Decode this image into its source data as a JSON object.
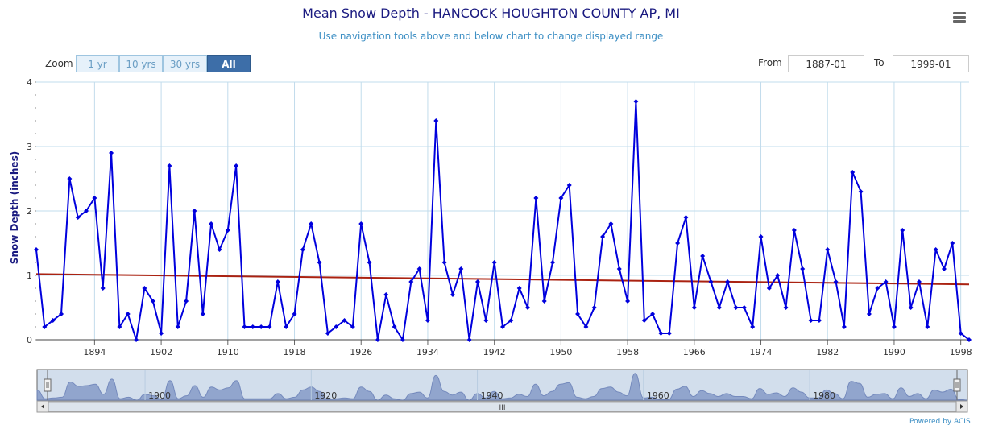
{
  "header": {
    "title": "Mean Snow Depth - HANCOCK HOUGHTON COUNTY AP, MI",
    "subtitle": "Use navigation tools above and below chart to change displayed range",
    "menu_icon": "hamburger-menu-icon"
  },
  "zoom": {
    "label": "Zoom",
    "buttons": [
      "1 yr",
      "10 yrs",
      "30 yrs",
      "All"
    ],
    "active": "All"
  },
  "range": {
    "from_label": "From",
    "from_value": "1887-01",
    "to_label": "To",
    "to_value": "1999-01"
  },
  "footer": {
    "credit": "Powered by ACIS"
  },
  "colors": {
    "series": "#0000dd",
    "trend": "#aa2211",
    "grid": "#c2dcec",
    "navigator_fill": "#d2deec",
    "navigator_area": "#8b9fca"
  },
  "chart_data": {
    "type": "line",
    "title": "Mean Snow Depth - HANCOCK HOUGHTON COUNTY AP, MI",
    "ylabel": "Snow Depth (inches)",
    "xlabel": "",
    "ylim": [
      0,
      4
    ],
    "xlim": [
      1887,
      1999
    ],
    "y_ticks": [
      0,
      1,
      2,
      3,
      4
    ],
    "x_ticks": [
      1894,
      1902,
      1910,
      1918,
      1926,
      1934,
      1942,
      1950,
      1958,
      1966,
      1974,
      1982,
      1990,
      1998
    ],
    "grid": true,
    "series": [
      {
        "x": [
          1887,
          1888,
          1889,
          1890,
          1891,
          1892,
          1893,
          1894,
          1895,
          1896,
          1897,
          1898,
          1899,
          1900,
          1901,
          1902,
          1903,
          1904,
          1905,
          1906,
          1907,
          1908,
          1909,
          1910,
          1911,
          1912,
          1913,
          1914,
          1915,
          1916,
          1917,
          1918,
          1919,
          1920,
          1921,
          1922,
          1923,
          1924,
          1925,
          1926,
          1927,
          1928,
          1929,
          1930,
          1931,
          1932,
          1933,
          1934,
          1935,
          1936,
          1937,
          1938,
          1939,
          1940,
          1941,
          1942,
          1943,
          1944,
          1945,
          1946,
          1947,
          1948,
          1949,
          1950,
          1951,
          1952,
          1953,
          1954,
          1955,
          1956,
          1957,
          1958,
          1959,
          1960,
          1961,
          1962,
          1963,
          1964,
          1965,
          1966,
          1967,
          1968,
          1969,
          1970,
          1971,
          1972,
          1973,
          1974,
          1975,
          1976,
          1977,
          1978,
          1979,
          1980,
          1981,
          1982,
          1983,
          1984,
          1985,
          1986,
          1987,
          1988,
          1989,
          1990,
          1991,
          1992,
          1993,
          1994,
          1995,
          1996,
          1997,
          1998,
          1999
        ],
        "y": [
          1.4,
          0.2,
          0.3,
          0.4,
          2.5,
          1.9,
          2.0,
          2.2,
          0.8,
          2.9,
          0.2,
          0.4,
          0.0,
          0.8,
          0.6,
          0.1,
          2.7,
          0.2,
          0.6,
          2.0,
          0.4,
          1.8,
          1.4,
          1.7,
          2.7,
          0.2,
          0.2,
          0.2,
          0.2,
          0.9,
          0.2,
          0.4,
          1.4,
          1.8,
          1.2,
          0.1,
          0.2,
          0.3,
          0.2,
          1.8,
          1.2,
          0.0,
          0.7,
          0.2,
          0.0,
          0.9,
          1.1,
          0.3,
          3.4,
          1.2,
          0.7,
          1.1,
          0.0,
          0.9,
          0.3,
          1.2,
          0.2,
          0.3,
          0.8,
          0.5,
          2.2,
          0.6,
          1.2,
          2.2,
          2.4,
          0.4,
          0.2,
          0.5,
          1.6,
          1.8,
          1.1,
          0.6,
          3.7,
          0.3,
          0.4,
          0.1,
          0.1,
          1.5,
          1.9,
          0.5,
          1.3,
          0.9,
          0.5,
          0.9,
          0.5,
          0.5,
          0.2,
          1.6,
          0.8,
          1.0,
          0.5,
          1.7,
          1.1,
          0.3,
          0.3,
          1.4,
          0.9,
          0.2,
          2.6,
          2.3,
          0.4,
          0.8,
          0.9,
          0.2,
          1.7,
          0.5,
          0.9,
          0.2,
          1.4,
          1.1,
          1.5,
          0.1,
          0.0
        ]
      },
      {
        "type": "trend",
        "x": [
          1887,
          1999
        ],
        "y": [
          1.02,
          0.86
        ]
      }
    ],
    "navigator": {
      "x_ticks": [
        1900,
        1920,
        1940,
        1960,
        1980
      ],
      "scrollbar_glyph": "III"
    }
  }
}
